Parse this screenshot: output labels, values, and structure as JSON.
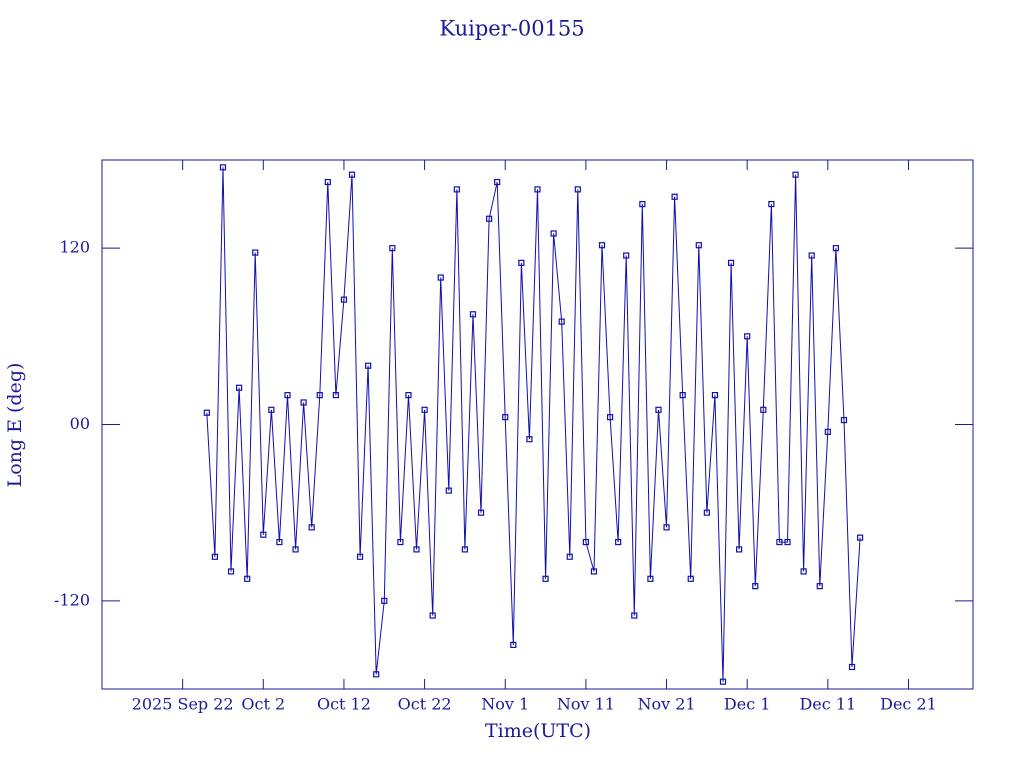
{
  "chart_data": {
    "type": "line",
    "title": "Kuiper-00155",
    "x_label": "Time(UTC)",
    "y_label": "Long E (deg)",
    "color": "#1010b0",
    "xlim": [
      "2025-09-12",
      "2025-12-29"
    ],
    "xticks": [
      {
        "value": "2025-09-22",
        "label": "2025 Sep 22"
      },
      {
        "value": "2025-10-02",
        "label": "Oct  2"
      },
      {
        "value": "2025-10-12",
        "label": "Oct 12"
      },
      {
        "value": "2025-10-22",
        "label": "Oct 22"
      },
      {
        "value": "2025-11-01",
        "label": "Nov  1"
      },
      {
        "value": "2025-11-11",
        "label": "Nov 11"
      },
      {
        "value": "2025-11-21",
        "label": "Nov 21"
      },
      {
        "value": "2025-12-01",
        "label": "Dec  1"
      },
      {
        "value": "2025-12-11",
        "label": "Dec 11"
      },
      {
        "value": "2025-12-21",
        "label": "Dec 21"
      }
    ],
    "ylim": [
      -180,
      180
    ],
    "yticks": [
      -120,
      {
        "value": 0,
        "label": "00"
      },
      120
    ],
    "x": [
      "2025-09-25",
      "2025-09-26",
      "2025-09-27",
      "2025-09-28",
      "2025-09-29",
      "2025-09-30",
      "2025-10-01",
      "2025-10-02",
      "2025-10-03",
      "2025-10-04",
      "2025-10-05",
      "2025-10-06",
      "2025-10-07",
      "2025-10-08",
      "2025-10-09",
      "2025-10-10",
      "2025-10-11",
      "2025-10-12",
      "2025-10-13",
      "2025-10-14",
      "2025-10-15",
      "2025-10-16",
      "2025-10-17",
      "2025-10-18",
      "2025-10-19",
      "2025-10-20",
      "2025-10-21",
      "2025-10-22",
      "2025-10-23",
      "2025-10-24",
      "2025-10-25",
      "2025-10-26",
      "2025-10-27",
      "2025-10-28",
      "2025-10-29",
      "2025-10-30",
      "2025-10-31",
      "2025-11-01",
      "2025-11-02",
      "2025-11-03",
      "2025-11-04",
      "2025-11-05",
      "2025-11-06",
      "2025-11-07",
      "2025-11-08",
      "2025-11-09",
      "2025-11-10",
      "2025-11-11",
      "2025-11-12",
      "2025-11-13",
      "2025-11-14",
      "2025-11-15",
      "2025-11-16",
      "2025-11-17",
      "2025-11-18",
      "2025-11-19",
      "2025-11-20",
      "2025-11-21",
      "2025-11-22",
      "2025-11-23",
      "2025-11-24",
      "2025-11-25",
      "2025-11-26",
      "2025-11-27",
      "2025-11-28",
      "2025-11-29",
      "2025-11-30",
      "2025-12-01",
      "2025-12-02",
      "2025-12-03",
      "2025-12-04",
      "2025-12-05",
      "2025-12-06",
      "2025-12-07",
      "2025-12-08",
      "2025-12-09",
      "2025-12-10",
      "2025-12-11",
      "2025-12-12",
      "2025-12-13",
      "2025-12-14",
      "2025-12-15"
    ],
    "values": [
      8,
      -90,
      175,
      -100,
      25,
      -105,
      117,
      -75,
      10,
      -80,
      20,
      -85,
      15,
      -70,
      20,
      165,
      20,
      85,
      170,
      -90,
      40,
      -170,
      -120,
      120,
      -80,
      20,
      -85,
      10,
      -130,
      100,
      -45,
      160,
      -85,
      75,
      -60,
      140,
      165,
      5,
      -150,
      110,
      -10,
      160,
      -105,
      130,
      70,
      -90,
      160,
      -80,
      -100,
      122,
      5,
      -80,
      115,
      -130,
      150,
      -105,
      10,
      -70,
      155,
      20,
      -105,
      122,
      -60,
      20,
      -175,
      110,
      -85,
      60,
      -110,
      10,
      150,
      -80,
      -80,
      170,
      -100,
      115,
      -110,
      -5,
      120,
      3,
      -165,
      -77
    ]
  }
}
